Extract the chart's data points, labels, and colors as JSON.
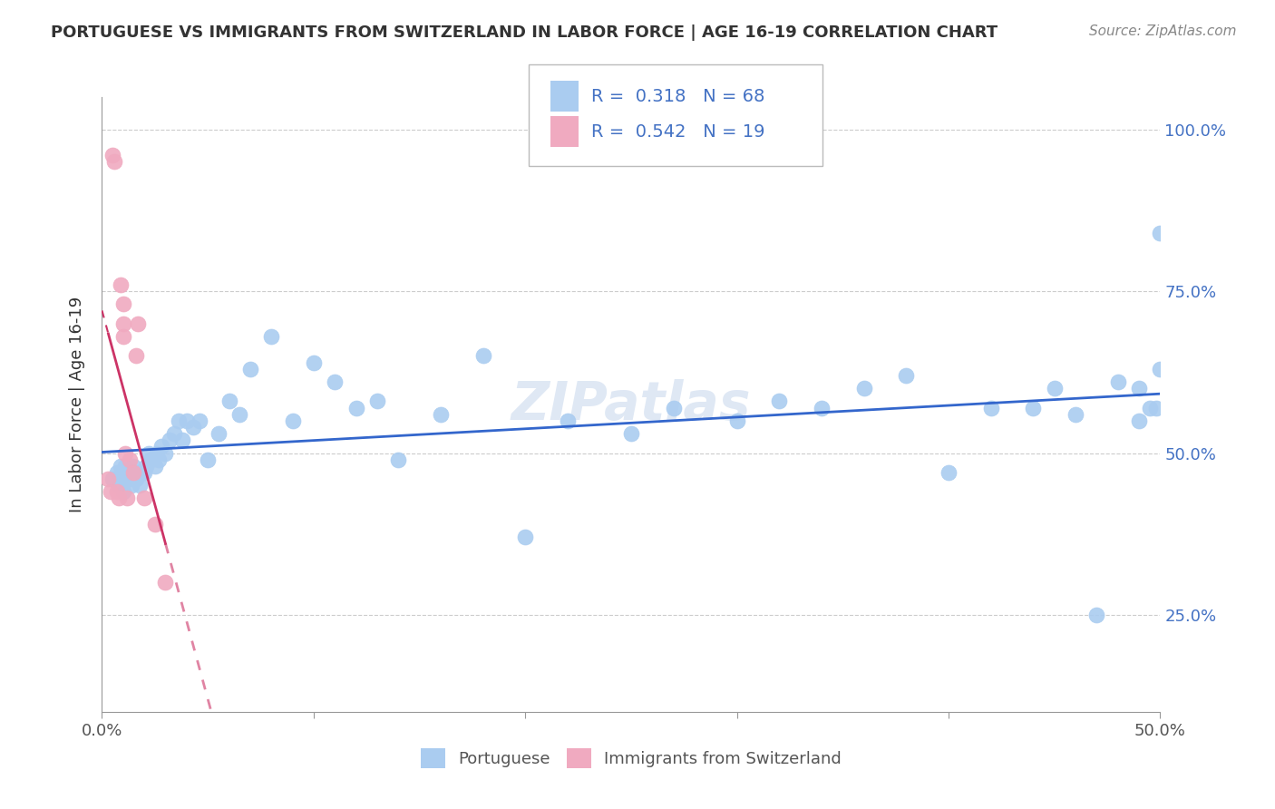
{
  "title": "PORTUGUESE VS IMMIGRANTS FROM SWITZERLAND IN LABOR FORCE | AGE 16-19 CORRELATION CHART",
  "source": "Source: ZipAtlas.com",
  "ylabel": "In Labor Force | Age 16-19",
  "r_blue": 0.318,
  "n_blue": 68,
  "r_pink": 0.542,
  "n_pink": 19,
  "blue_color": "#aaccf0",
  "pink_color": "#f0aac0",
  "blue_line_color": "#3366cc",
  "pink_line_color": "#cc3366",
  "xmin": 0.0,
  "xmax": 0.5,
  "ymin": 0.1,
  "ymax": 1.05,
  "blue_x": [
    0.005,
    0.007,
    0.008,
    0.009,
    0.01,
    0.01,
    0.011,
    0.012,
    0.013,
    0.014,
    0.015,
    0.015,
    0.016,
    0.017,
    0.018,
    0.019,
    0.02,
    0.021,
    0.022,
    0.023,
    0.025,
    0.026,
    0.027,
    0.028,
    0.03,
    0.032,
    0.034,
    0.036,
    0.038,
    0.04,
    0.043,
    0.046,
    0.05,
    0.055,
    0.06,
    0.065,
    0.07,
    0.08,
    0.09,
    0.1,
    0.11,
    0.12,
    0.13,
    0.14,
    0.16,
    0.18,
    0.2,
    0.22,
    0.25,
    0.27,
    0.3,
    0.32,
    0.34,
    0.36,
    0.38,
    0.4,
    0.42,
    0.44,
    0.45,
    0.46,
    0.47,
    0.48,
    0.49,
    0.49,
    0.495,
    0.498,
    0.5,
    0.5
  ],
  "blue_y": [
    0.46,
    0.47,
    0.45,
    0.48,
    0.44,
    0.46,
    0.48,
    0.47,
    0.46,
    0.45,
    0.47,
    0.48,
    0.46,
    0.47,
    0.45,
    0.47,
    0.47,
    0.48,
    0.5,
    0.49,
    0.48,
    0.5,
    0.49,
    0.51,
    0.5,
    0.52,
    0.53,
    0.55,
    0.52,
    0.55,
    0.54,
    0.55,
    0.49,
    0.53,
    0.58,
    0.56,
    0.63,
    0.68,
    0.55,
    0.64,
    0.61,
    0.57,
    0.58,
    0.49,
    0.56,
    0.65,
    0.37,
    0.55,
    0.53,
    0.57,
    0.55,
    0.58,
    0.57,
    0.6,
    0.62,
    0.47,
    0.57,
    0.57,
    0.6,
    0.56,
    0.25,
    0.61,
    0.6,
    0.55,
    0.57,
    0.57,
    0.84,
    0.63
  ],
  "pink_x": [
    0.003,
    0.004,
    0.005,
    0.006,
    0.007,
    0.008,
    0.009,
    0.01,
    0.01,
    0.01,
    0.011,
    0.012,
    0.013,
    0.015,
    0.016,
    0.017,
    0.02,
    0.025,
    0.03
  ],
  "pink_y": [
    0.46,
    0.44,
    0.96,
    0.95,
    0.44,
    0.43,
    0.76,
    0.73,
    0.7,
    0.68,
    0.5,
    0.43,
    0.49,
    0.47,
    0.65,
    0.7,
    0.43,
    0.39,
    0.3
  ]
}
